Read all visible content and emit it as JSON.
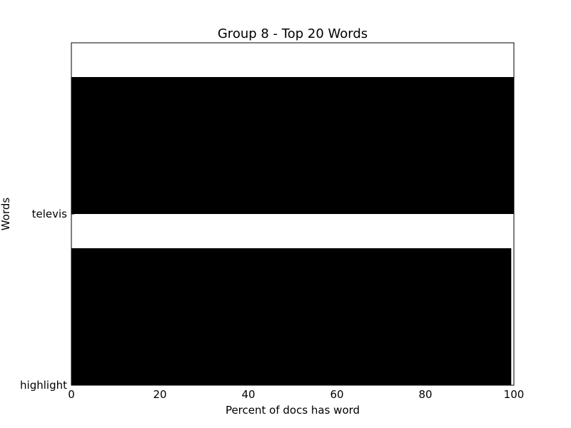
{
  "chart_data": {
    "type": "bar",
    "orientation": "horizontal",
    "title": "Group 8 - Top 20 Words",
    "xlabel": "Percent of docs has word",
    "ylabel": "Words",
    "categories": [
      "highlight",
      "televis"
    ],
    "values": [
      99.4,
      100
    ],
    "xlim": [
      0,
      100
    ],
    "xticks": [
      0,
      20,
      40,
      60,
      80,
      100
    ],
    "grid": false,
    "bar_color": "#000000"
  }
}
